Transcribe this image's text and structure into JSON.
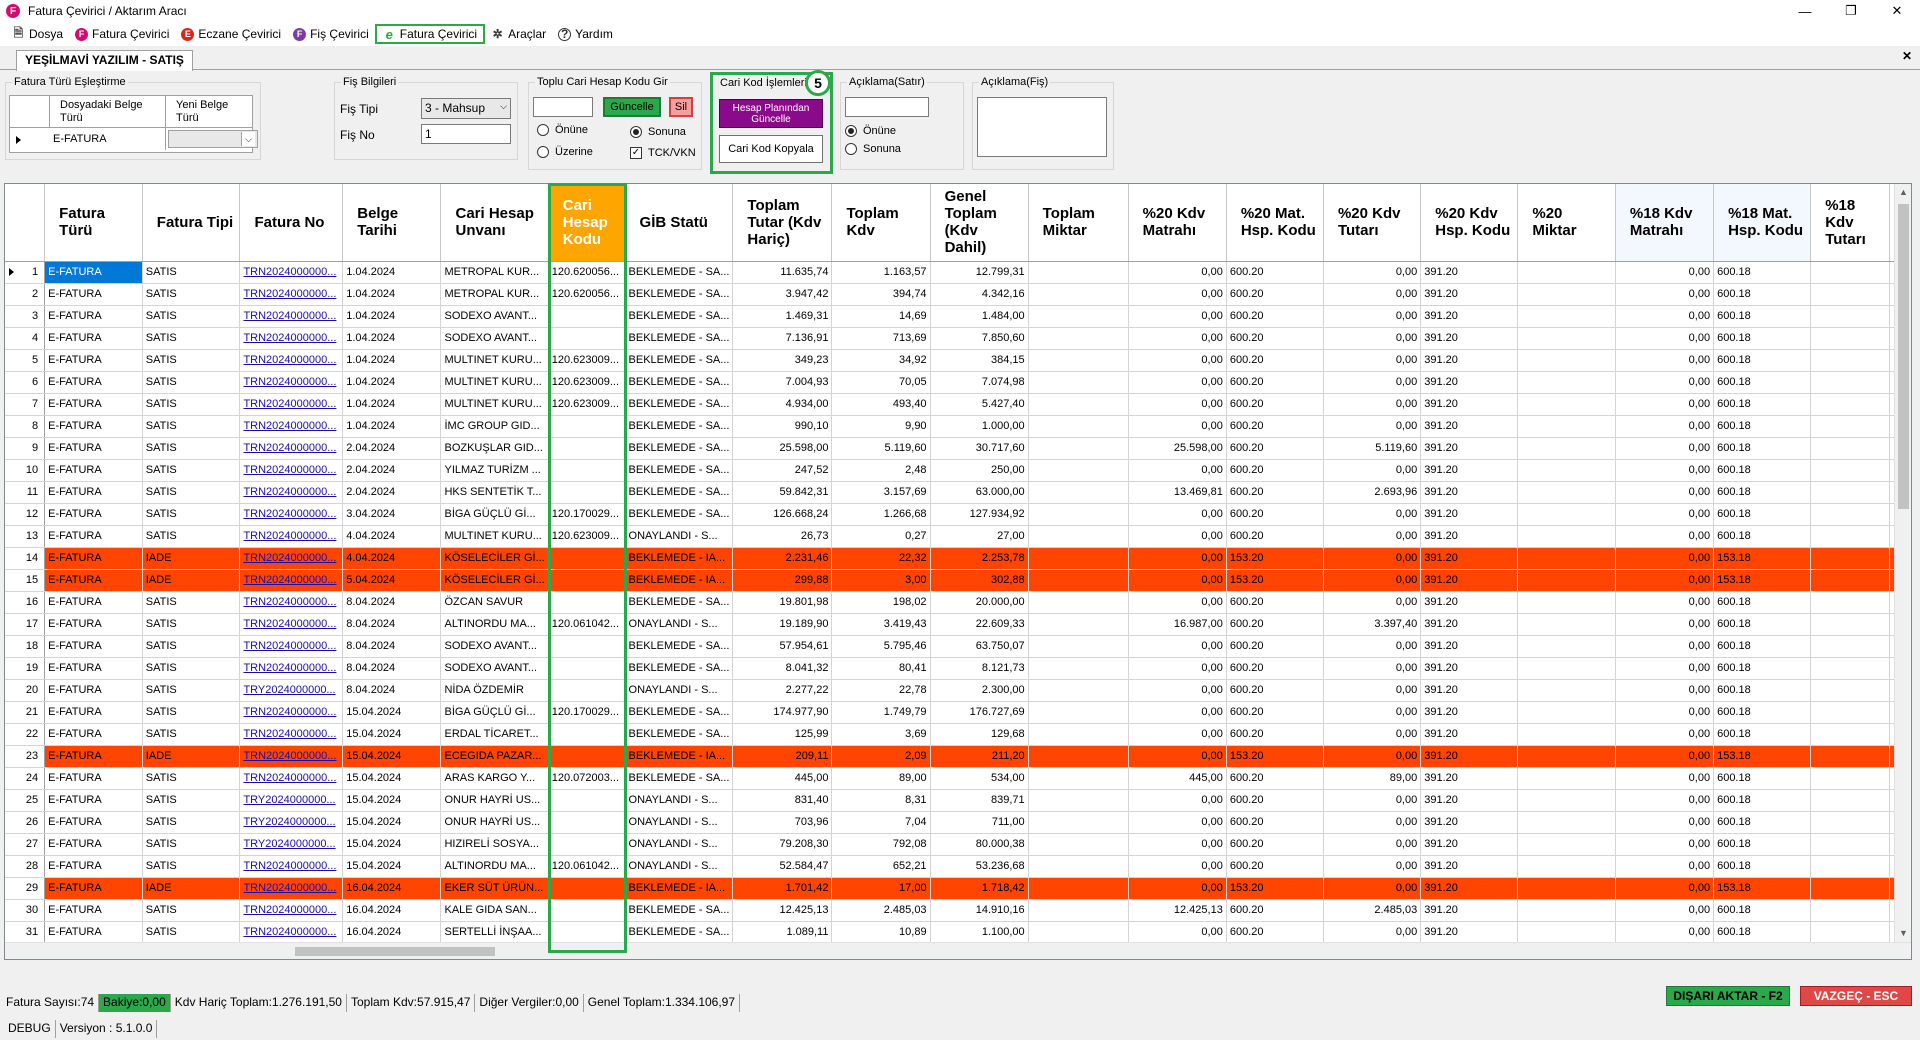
{
  "window": {
    "title": "Fatura Çevirici / Aktarım Aracı",
    "app_icon_letter": "F",
    "minimize": "—",
    "maximize": "❐",
    "close": "✕"
  },
  "menu": [
    {
      "label": "Dosya",
      "icon": "document-icon",
      "glyph": "🗎",
      "color": "#555555"
    },
    {
      "label": "Fatura Çevirici",
      "icon": "fatura-icon",
      "glyph": "F",
      "color": "#d10c70"
    },
    {
      "label": "Eczane Çevirici",
      "icon": "eczane-icon",
      "glyph": "E",
      "color": "#d9261c"
    },
    {
      "label": "Fiş Çevirici",
      "icon": "fis-icon",
      "glyph": "F",
      "color": "#7a3fa0"
    },
    {
      "label": "Fatura Çevirici",
      "icon": "e-fatura-icon",
      "glyph": "e",
      "color": "#2ba84a",
      "active": true
    },
    {
      "label": "Araçlar",
      "icon": "tools-icon",
      "glyph": "✲",
      "color": "#333333"
    },
    {
      "label": "Yardım",
      "icon": "help-icon",
      "glyph": "?",
      "color": "#333333"
    }
  ],
  "tab": {
    "label": "YEŞİLMAVİ YAZILIM - SATIŞ",
    "close": "✕"
  },
  "panel": {
    "fatura_turu": {
      "title": "Fatura Türü Eşleştirme",
      "col1": "Dosyadaki Belge Türü",
      "col2": "Yeni Belge Türü",
      "row_value": "E-FATURA"
    },
    "fis_bilgileri": {
      "title": "Fiş Bilgileri",
      "fis_tipi_label": "Fiş Tipi",
      "fis_tipi_value": "3 - Mahsup",
      "fis_no_label": "Fiş No",
      "fis_no_value": "1"
    },
    "toplu": {
      "title": "Toplu Cari Hesap Kodu Gir",
      "guncelle": "Güncelle",
      "sil": "Sil",
      "onune": "Önüne",
      "sonuna": "Sonuna",
      "uzerine": "Üzerine",
      "tck": "TCK/VKN"
    },
    "cari_kod": {
      "title": "Cari Kod İşlemleri",
      "btn_guncelle": "Hesap Planından Güncelle",
      "btn_kopyala": "Cari Kod Kopyala",
      "badge": "5"
    },
    "aciklama_satir": {
      "title": "Açıklama(Satır)",
      "onune": "Önüne",
      "sonuna": "Sonuna"
    },
    "aciklama_fis": {
      "title": "Açıklama(Fiş)"
    }
  },
  "columns": [
    "Fatura Türü",
    "Fatura Tipi",
    "Fatura No",
    "Belge Tarihi",
    "Cari Hesap Unvanı",
    "Cari Hesap Kodu",
    "GİB Statü",
    "Toplam Tutar (Kdv Hariç)",
    "Toplam Kdv",
    "Genel Toplam (Kdv Dahil)",
    "Toplam Miktar",
    "%20 Kdv Matrahı",
    "%20 Mat. Hsp. Kodu",
    "%20 Kdv Tutarı",
    "%20 Kdv Hsp. Kodu",
    "%20 Miktar",
    "%18 Kdv Matrahı",
    "%18 Mat. Hsp. Kodu",
    "%18 Kdv Tutarı"
  ],
  "rows": [
    {
      "n": "1",
      "tur": "E-FATURA",
      "tip": "SATIS",
      "no": "TRN2024000000...",
      "tarih": "1.04.2024",
      "unvan": "METROPAL KUR...",
      "kod": "120.620056...",
      "gib": "BEKLEMEDE - SA...",
      "tutar": "11.635,74",
      "kdv": "1.163,57",
      "genel": "12.799,31",
      "m20": "0,00",
      "mh20": "600.20",
      "k20": "0,00",
      "kh20": "391.20",
      "m18": "0,00",
      "mh18": "600.18",
      "iade": false
    },
    {
      "n": "2",
      "tur": "E-FATURA",
      "tip": "SATIS",
      "no": "TRN2024000000...",
      "tarih": "1.04.2024",
      "unvan": "METROPAL KUR...",
      "kod": "120.620056...",
      "gib": "BEKLEMEDE - SA...",
      "tutar": "3.947,42",
      "kdv": "394,74",
      "genel": "4.342,16",
      "m20": "0,00",
      "mh20": "600.20",
      "k20": "0,00",
      "kh20": "391.20",
      "m18": "0,00",
      "mh18": "600.18",
      "iade": false
    },
    {
      "n": "3",
      "tur": "E-FATURA",
      "tip": "SATIS",
      "no": "TRN2024000000...",
      "tarih": "1.04.2024",
      "unvan": "SODEXO AVANT...",
      "kod": "",
      "gib": "BEKLEMEDE - SA...",
      "tutar": "1.469,31",
      "kdv": "14,69",
      "genel": "1.484,00",
      "m20": "0,00",
      "mh20": "600.20",
      "k20": "0,00",
      "kh20": "391.20",
      "m18": "0,00",
      "mh18": "600.18",
      "iade": false
    },
    {
      "n": "4",
      "tur": "E-FATURA",
      "tip": "SATIS",
      "no": "TRN2024000000...",
      "tarih": "1.04.2024",
      "unvan": "SODEXO AVANT...",
      "kod": "",
      "gib": "BEKLEMEDE - SA...",
      "tutar": "7.136,91",
      "kdv": "713,69",
      "genel": "7.850,60",
      "m20": "0,00",
      "mh20": "600.20",
      "k20": "0,00",
      "kh20": "391.20",
      "m18": "0,00",
      "mh18": "600.18",
      "iade": false
    },
    {
      "n": "5",
      "tur": "E-FATURA",
      "tip": "SATIS",
      "no": "TRN2024000000...",
      "tarih": "1.04.2024",
      "unvan": "MULTINET KURU...",
      "kod": "120.623009...",
      "gib": "BEKLEMEDE - SA...",
      "tutar": "349,23",
      "kdv": "34,92",
      "genel": "384,15",
      "m20": "0,00",
      "mh20": "600.20",
      "k20": "0,00",
      "kh20": "391.20",
      "m18": "0,00",
      "mh18": "600.18",
      "iade": false
    },
    {
      "n": "6",
      "tur": "E-FATURA",
      "tip": "SATIS",
      "no": "TRN2024000000...",
      "tarih": "1.04.2024",
      "unvan": "MULTINET KURU...",
      "kod": "120.623009...",
      "gib": "BEKLEMEDE - SA...",
      "tutar": "7.004,93",
      "kdv": "70,05",
      "genel": "7.074,98",
      "m20": "0,00",
      "mh20": "600.20",
      "k20": "0,00",
      "kh20": "391.20",
      "m18": "0,00",
      "mh18": "600.18",
      "iade": false
    },
    {
      "n": "7",
      "tur": "E-FATURA",
      "tip": "SATIS",
      "no": "TRN2024000000...",
      "tarih": "1.04.2024",
      "unvan": "MULTINET KURU...",
      "kod": "120.623009...",
      "gib": "BEKLEMEDE - SA...",
      "tutar": "4.934,00",
      "kdv": "493,40",
      "genel": "5.427,40",
      "m20": "0,00",
      "mh20": "600.20",
      "k20": "0,00",
      "kh20": "391.20",
      "m18": "0,00",
      "mh18": "600.18",
      "iade": false
    },
    {
      "n": "8",
      "tur": "E-FATURA",
      "tip": "SATIS",
      "no": "TRN2024000000...",
      "tarih": "1.04.2024",
      "unvan": "İMC GROUP GID...",
      "kod": "",
      "gib": "BEKLEMEDE - SA...",
      "tutar": "990,10",
      "kdv": "9,90",
      "genel": "1.000,00",
      "m20": "0,00",
      "mh20": "600.20",
      "k20": "0,00",
      "kh20": "391.20",
      "m18": "0,00",
      "mh18": "600.18",
      "iade": false
    },
    {
      "n": "9",
      "tur": "E-FATURA",
      "tip": "SATIS",
      "no": "TRN2024000000...",
      "tarih": "2.04.2024",
      "unvan": "BOZKUŞLAR GID...",
      "kod": "",
      "gib": "BEKLEMEDE - SA...",
      "tutar": "25.598,00",
      "kdv": "5.119,60",
      "genel": "30.717,60",
      "m20": "25.598,00",
      "mh20": "600.20",
      "k20": "5.119,60",
      "kh20": "391.20",
      "m18": "0,00",
      "mh18": "600.18",
      "iade": false
    },
    {
      "n": "10",
      "tur": "E-FATURA",
      "tip": "SATIS",
      "no": "TRN2024000000...",
      "tarih": "2.04.2024",
      "unvan": "YILMAZ TURİZM ...",
      "kod": "",
      "gib": "BEKLEMEDE - SA...",
      "tutar": "247,52",
      "kdv": "2,48",
      "genel": "250,00",
      "m20": "0,00",
      "mh20": "600.20",
      "k20": "0,00",
      "kh20": "391.20",
      "m18": "0,00",
      "mh18": "600.18",
      "iade": false
    },
    {
      "n": "11",
      "tur": "E-FATURA",
      "tip": "SATIS",
      "no": "TRN2024000000...",
      "tarih": "2.04.2024",
      "unvan": "HKS SENTETİK T...",
      "kod": "",
      "gib": "BEKLEMEDE - SA...",
      "tutar": "59.842,31",
      "kdv": "3.157,69",
      "genel": "63.000,00",
      "m20": "13.469,81",
      "mh20": "600.20",
      "k20": "2.693,96",
      "kh20": "391.20",
      "m18": "0,00",
      "mh18": "600.18",
      "iade": false
    },
    {
      "n": "12",
      "tur": "E-FATURA",
      "tip": "SATIS",
      "no": "TRN2024000000...",
      "tarih": "3.04.2024",
      "unvan": "BİGA GÜÇLÜ Gİ...",
      "kod": "120.170029...",
      "gib": "BEKLEMEDE - SA...",
      "tutar": "126.668,24",
      "kdv": "1.266,68",
      "genel": "127.934,92",
      "m20": "0,00",
      "mh20": "600.20",
      "k20": "0,00",
      "kh20": "391.20",
      "m18": "0,00",
      "mh18": "600.18",
      "iade": false
    },
    {
      "n": "13",
      "tur": "E-FATURA",
      "tip": "SATIS",
      "no": "TRN2024000000...",
      "tarih": "4.04.2024",
      "unvan": "MULTINET KURU...",
      "kod": "120.623009...",
      "gib": "ONAYLANDI - S...",
      "tutar": "26,73",
      "kdv": "0,27",
      "genel": "27,00",
      "m20": "0,00",
      "mh20": "600.20",
      "k20": "0,00",
      "kh20": "391.20",
      "m18": "0,00",
      "mh18": "600.18",
      "iade": false
    },
    {
      "n": "14",
      "tur": "E-FATURA",
      "tip": "IADE",
      "no": "TRN2024000000...",
      "tarih": "4.04.2024",
      "unvan": "KÖSELECİLER Gİ...",
      "kod": "",
      "gib": "BEKLEMEDE - IA...",
      "tutar": "2.231,46",
      "kdv": "22,32",
      "genel": "2.253,78",
      "m20": "0,00",
      "mh20": "153.20",
      "k20": "0,00",
      "kh20": "391.20",
      "m18": "0,00",
      "mh18": "153.18",
      "iade": true
    },
    {
      "n": "15",
      "tur": "E-FATURA",
      "tip": "IADE",
      "no": "TRN2024000000...",
      "tarih": "5.04.2024",
      "unvan": "KÖSELECİLER Gİ...",
      "kod": "",
      "gib": "BEKLEMEDE - IA...",
      "tutar": "299,88",
      "kdv": "3,00",
      "genel": "302,88",
      "m20": "0,00",
      "mh20": "153.20",
      "k20": "0,00",
      "kh20": "391.20",
      "m18": "0,00",
      "mh18": "153.18",
      "iade": true
    },
    {
      "n": "16",
      "tur": "E-FATURA",
      "tip": "SATIS",
      "no": "TRN2024000000...",
      "tarih": "8.04.2024",
      "unvan": "ÖZCAN SAVUR",
      "kod": "",
      "gib": "BEKLEMEDE - SA...",
      "tutar": "19.801,98",
      "kdv": "198,02",
      "genel": "20.000,00",
      "m20": "0,00",
      "mh20": "600.20",
      "k20": "0,00",
      "kh20": "391.20",
      "m18": "0,00",
      "mh18": "600.18",
      "iade": false
    },
    {
      "n": "17",
      "tur": "E-FATURA",
      "tip": "SATIS",
      "no": "TRN2024000000...",
      "tarih": "8.04.2024",
      "unvan": "ALTINORDU MA...",
      "kod": "120.061042...",
      "gib": "ONAYLANDI - S...",
      "tutar": "19.189,90",
      "kdv": "3.419,43",
      "genel": "22.609,33",
      "m20": "16.987,00",
      "mh20": "600.20",
      "k20": "3.397,40",
      "kh20": "391.20",
      "m18": "0,00",
      "mh18": "600.18",
      "iade": false
    },
    {
      "n": "18",
      "tur": "E-FATURA",
      "tip": "SATIS",
      "no": "TRN2024000000...",
      "tarih": "8.04.2024",
      "unvan": "SODEXO AVANT...",
      "kod": "",
      "gib": "BEKLEMEDE - SA...",
      "tutar": "57.954,61",
      "kdv": "5.795,46",
      "genel": "63.750,07",
      "m20": "0,00",
      "mh20": "600.20",
      "k20": "0,00",
      "kh20": "391.20",
      "m18": "0,00",
      "mh18": "600.18",
      "iade": false
    },
    {
      "n": "19",
      "tur": "E-FATURA",
      "tip": "SATIS",
      "no": "TRN2024000000...",
      "tarih": "8.04.2024",
      "unvan": "SODEXO AVANT...",
      "kod": "",
      "gib": "BEKLEMEDE - SA...",
      "tutar": "8.041,32",
      "kdv": "80,41",
      "genel": "8.121,73",
      "m20": "0,00",
      "mh20": "600.20",
      "k20": "0,00",
      "kh20": "391.20",
      "m18": "0,00",
      "mh18": "600.18",
      "iade": false
    },
    {
      "n": "20",
      "tur": "E-FATURA",
      "tip": "SATIS",
      "no": "TRY2024000000...",
      "tarih": "8.04.2024",
      "unvan": "NİDA ÖZDEMİR",
      "kod": "",
      "gib": "ONAYLANDI - S...",
      "tutar": "2.277,22",
      "kdv": "22,78",
      "genel": "2.300,00",
      "m20": "0,00",
      "mh20": "600.20",
      "k20": "0,00",
      "kh20": "391.20",
      "m18": "0,00",
      "mh18": "600.18",
      "iade": false
    },
    {
      "n": "21",
      "tur": "E-FATURA",
      "tip": "SATIS",
      "no": "TRN2024000000...",
      "tarih": "15.04.2024",
      "unvan": "BİGA GÜÇLÜ Gİ...",
      "kod": "120.170029...",
      "gib": "BEKLEMEDE - SA...",
      "tutar": "174.977,90",
      "kdv": "1.749,79",
      "genel": "176.727,69",
      "m20": "0,00",
      "mh20": "600.20",
      "k20": "0,00",
      "kh20": "391.20",
      "m18": "0,00",
      "mh18": "600.18",
      "iade": false
    },
    {
      "n": "22",
      "tur": "E-FATURA",
      "tip": "SATIS",
      "no": "TRN2024000000...",
      "tarih": "15.04.2024",
      "unvan": "ERDAL TİCARET...",
      "kod": "",
      "gib": "BEKLEMEDE - SA...",
      "tutar": "125,99",
      "kdv": "3,69",
      "genel": "129,68",
      "m20": "0,00",
      "mh20": "600.20",
      "k20": "0,00",
      "kh20": "391.20",
      "m18": "0,00",
      "mh18": "600.18",
      "iade": false
    },
    {
      "n": "23",
      "tur": "E-FATURA",
      "tip": "IADE",
      "no": "TRN2024000000...",
      "tarih": "15.04.2024",
      "unvan": "ECEGIDA PAZAR...",
      "kod": "",
      "gib": "BEKLEMEDE - IA...",
      "tutar": "209,11",
      "kdv": "2,09",
      "genel": "211,20",
      "m20": "0,00",
      "mh20": "153.20",
      "k20": "0,00",
      "kh20": "391.20",
      "m18": "0,00",
      "mh18": "153.18",
      "iade": true
    },
    {
      "n": "24",
      "tur": "E-FATURA",
      "tip": "SATIS",
      "no": "TRN2024000000...",
      "tarih": "15.04.2024",
      "unvan": "ARAS KARGO Y...",
      "kod": "120.072003...",
      "gib": "BEKLEMEDE - SA...",
      "tutar": "445,00",
      "kdv": "89,00",
      "genel": "534,00",
      "m20": "445,00",
      "mh20": "600.20",
      "k20": "89,00",
      "kh20": "391.20",
      "m18": "0,00",
      "mh18": "600.18",
      "iade": false
    },
    {
      "n": "25",
      "tur": "E-FATURA",
      "tip": "SATIS",
      "no": "TRY2024000000...",
      "tarih": "15.04.2024",
      "unvan": "ONUR HAYRİ US...",
      "kod": "",
      "gib": "ONAYLANDI - S...",
      "tutar": "831,40",
      "kdv": "8,31",
      "genel": "839,71",
      "m20": "0,00",
      "mh20": "600.20",
      "k20": "0,00",
      "kh20": "391.20",
      "m18": "0,00",
      "mh18": "600.18",
      "iade": false
    },
    {
      "n": "26",
      "tur": "E-FATURA",
      "tip": "SATIS",
      "no": "TRY2024000000...",
      "tarih": "15.04.2024",
      "unvan": "ONUR HAYRİ US...",
      "kod": "",
      "gib": "ONAYLANDI - S...",
      "tutar": "703,96",
      "kdv": "7,04",
      "genel": "711,00",
      "m20": "0,00",
      "mh20": "600.20",
      "k20": "0,00",
      "kh20": "391.20",
      "m18": "0,00",
      "mh18": "600.18",
      "iade": false
    },
    {
      "n": "27",
      "tur": "E-FATURA",
      "tip": "SATIS",
      "no": "TRY2024000000...",
      "tarih": "15.04.2024",
      "unvan": "HIZIRELİ SOSYA...",
      "kod": "",
      "gib": "ONAYLANDI - S...",
      "tutar": "79.208,30",
      "kdv": "792,08",
      "genel": "80.000,38",
      "m20": "0,00",
      "mh20": "600.20",
      "k20": "0,00",
      "kh20": "391.20",
      "m18": "0,00",
      "mh18": "600.18",
      "iade": false
    },
    {
      "n": "28",
      "tur": "E-FATURA",
      "tip": "SATIS",
      "no": "TRN2024000000...",
      "tarih": "15.04.2024",
      "unvan": "ALTINORDU MA...",
      "kod": "120.061042...",
      "gib": "ONAYLANDI - S...",
      "tutar": "52.584,47",
      "kdv": "652,21",
      "genel": "53.236,68",
      "m20": "0,00",
      "mh20": "600.20",
      "k20": "0,00",
      "kh20": "391.20",
      "m18": "0,00",
      "mh18": "600.18",
      "iade": false
    },
    {
      "n": "29",
      "tur": "E-FATURA",
      "tip": "IADE",
      "no": "TRN2024000000...",
      "tarih": "16.04.2024",
      "unvan": "EKER SÜT ÜRÜN...",
      "kod": "",
      "gib": "BEKLEMEDE - IA...",
      "tutar": "1.701,42",
      "kdv": "17,00",
      "genel": "1.718,42",
      "m20": "0,00",
      "mh20": "153.20",
      "k20": "0,00",
      "kh20": "391.20",
      "m18": "0,00",
      "mh18": "153.18",
      "iade": true
    },
    {
      "n": "30",
      "tur": "E-FATURA",
      "tip": "SATIS",
      "no": "TRN2024000000...",
      "tarih": "16.04.2024",
      "unvan": "KALE GIDA SAN...",
      "kod": "",
      "gib": "BEKLEMEDE - SA...",
      "tutar": "12.425,13",
      "kdv": "2.485,03",
      "genel": "14.910,16",
      "m20": "12.425,13",
      "mh20": "600.20",
      "k20": "2.485,03",
      "kh20": "391.20",
      "m18": "0,00",
      "mh18": "600.18",
      "iade": false
    },
    {
      "n": "31",
      "tur": "E-FATURA",
      "tip": "SATIS",
      "no": "TRN2024000000...",
      "tarih": "16.04.2024",
      "unvan": "SERTELLİ İNŞAA...",
      "kod": "",
      "gib": "BEKLEMEDE - SA...",
      "tutar": "1.089,11",
      "kdv": "10,89",
      "genel": "1.100,00",
      "m20": "0,00",
      "mh20": "600.20",
      "k20": "0,00",
      "kh20": "391.20",
      "m18": "0,00",
      "mh18": "600.18",
      "iade": false
    }
  ],
  "status": {
    "fatura_sayisi": "Fatura Sayısı:74",
    "bakiye": "Bakiye:0,00",
    "kdv_haric": "Kdv Hariç Toplam:1.276.191,50",
    "toplam_kdv": "Toplam Kdv:57.915,47",
    "diger": "Diğer Vergiler:0,00",
    "genel": "Genel Toplam:1.334.106,97"
  },
  "actions": {
    "export": "DIŞARI AKTAR - F2",
    "cancel": "VAZGEÇ - ESC"
  },
  "bottom": {
    "mode": "DEBUG",
    "version": "Versiyon : 5.1.0.0"
  },
  "colors": {
    "iade_row": "#ff4500",
    "highlight_green": "#2ba84a",
    "header_orange": "#ffa500",
    "button_purple": "#8b0a8b"
  }
}
